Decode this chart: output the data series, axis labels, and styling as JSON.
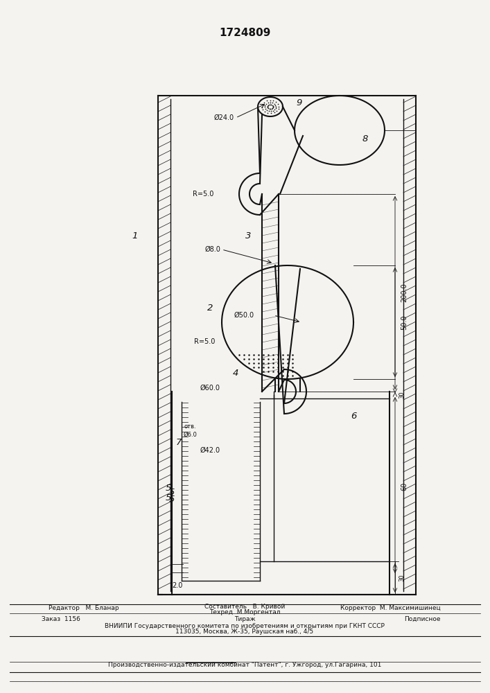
{
  "title": "1724809",
  "bg_color": "#f5f3f0",
  "line_color": "#111111",
  "footer_col1": "Редактор   М. Бланар",
  "footer_col2_line1": "Составитель   В. Кривой",
  "footer_col2_line2": "Техред  М.Моргентал",
  "footer_col3": "Корректор  М. Максимишинец",
  "footer_order": "Заказ  1156",
  "footer_tirazh": "Тираж",
  "footer_podp": "Подписное",
  "footer_vniipи1": "ВНИИПИ Государственного комитета по изобретениям и открытиям при ГКНТ СССР",
  "footer_vniipи2": "113035, Москва, Ж-35, Раушская наб., 4/5",
  "footer_patent": "Производственно-издательский комбинат \"Патент\", г. Ужгород, ул.Гагарина, 101"
}
